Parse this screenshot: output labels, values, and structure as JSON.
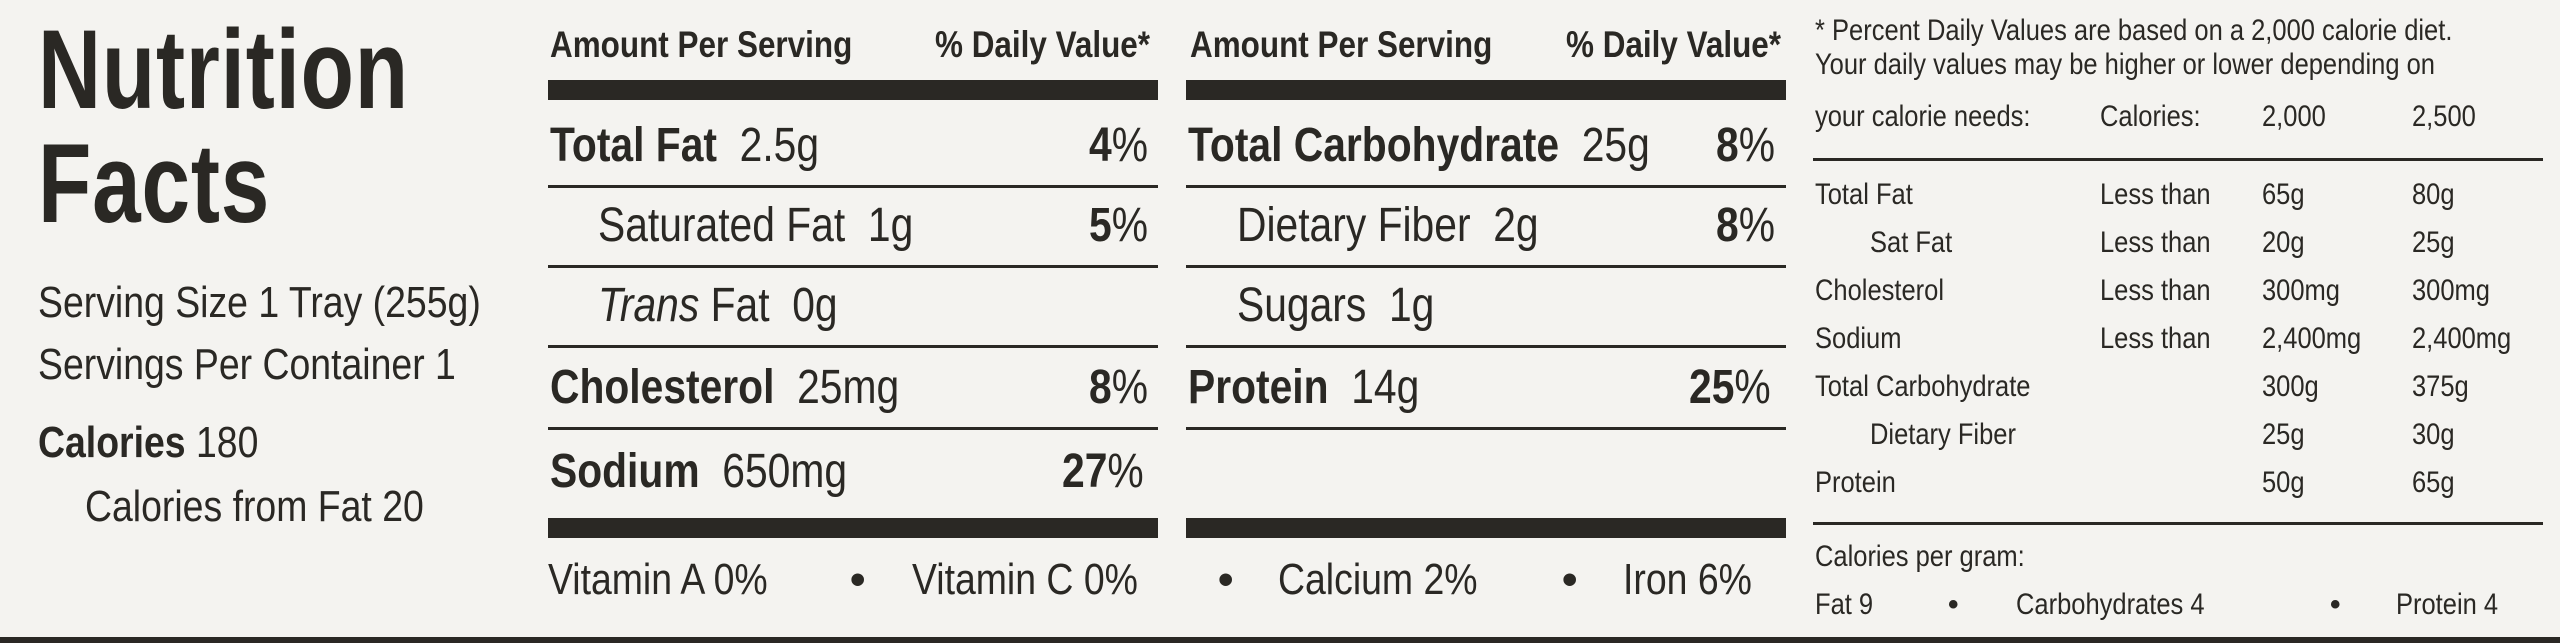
{
  "title": {
    "line1": "Nutrition",
    "line2": "Facts"
  },
  "serving": {
    "size": "Serving Size 1 Tray (255g)",
    "per_container": "Servings Per Container 1",
    "calories_label": "Calories",
    "calories_value": "180",
    "calories_from_fat": "Calories from Fat  20"
  },
  "header": {
    "amount": "Amount Per Serving",
    "daily": "% Daily Value*"
  },
  "left_rows": [
    {
      "label": "Total Fat",
      "amount": "2.5g",
      "pct": "4",
      "sign": "%"
    },
    {
      "label": "Saturated Fat",
      "amount": "1g",
      "pct": "5",
      "sign": "%"
    },
    {
      "label": "Trans",
      "label_suffix": "Fat",
      "amount": "0g"
    },
    {
      "label": "Cholesterol",
      "amount": "25mg",
      "pct": "8",
      "sign": "%"
    },
    {
      "label": "Sodium",
      "amount": "650mg",
      "pct": "27",
      "sign": "%"
    }
  ],
  "right_rows": [
    {
      "label": "Total Carbohydrate",
      "amount": "25g",
      "pct": "8",
      "sign": "%"
    },
    {
      "label": "Dietary Fiber",
      "amount": "2g",
      "pct": "8",
      "sign": "%"
    },
    {
      "label": "Sugars",
      "amount": "1g"
    },
    {
      "label": "Protein",
      "amount": "14g",
      "pct": "25",
      "sign": "%"
    }
  ],
  "vitamins": {
    "a": "Vitamin A  0%",
    "c": "Vitamin C  0%",
    "calcium": "Calcium  2%",
    "iron": "Iron  6%",
    "separator": "•"
  },
  "footnote": {
    "line1": "* Percent Daily Values are based on a 2,000 calorie diet.",
    "line2": "Your daily values may be higher or lower depending on",
    "line3": "your calorie needs:",
    "calories_label": "Calories:",
    "cal_2000": "2,000",
    "cal_2500": "2,500",
    "rows": [
      {
        "nutrient": "Total Fat",
        "qualifier": "Less than",
        "v2000": "65g",
        "v2500": "80g"
      },
      {
        "nutrient": "Sat Fat",
        "qualifier": "Less than",
        "v2000": "20g",
        "v2500": "25g"
      },
      {
        "nutrient": "Cholesterol",
        "qualifier": "Less than",
        "v2000": "300mg",
        "v2500": "300mg"
      },
      {
        "nutrient": "Sodium",
        "qualifier": "Less than",
        "v2000": "2,400mg",
        "v2500": "2,400mg"
      },
      {
        "nutrient": "Total Carbohydrate",
        "qualifier": "",
        "v2000": "300g",
        "v2500": "375g"
      },
      {
        "nutrient": "Dietary Fiber",
        "qualifier": "",
        "v2000": "25g",
        "v2500": "30g"
      },
      {
        "nutrient": "Protein",
        "qualifier": "",
        "v2000": "50g",
        "v2500": "65g"
      }
    ],
    "cal_per_gram": "Calories per gram:",
    "fat": "Fat 9",
    "carbs": "Carbohydrates 4",
    "protein": "Protein 4",
    "separator": "•"
  }
}
